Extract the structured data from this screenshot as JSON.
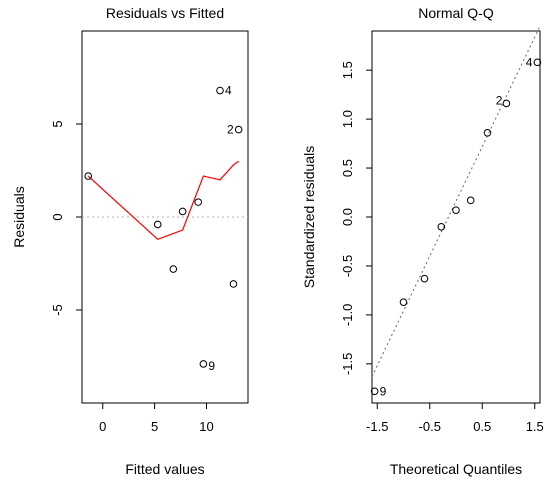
{
  "chart_data": [
    {
      "type": "scatter",
      "title": "Residuals vs Fitted",
      "xlabel": "Fitted values",
      "ylabel": "Residuals",
      "xlim": [
        -2,
        14
      ],
      "ylim": [
        -10,
        10
      ],
      "x_ticks": [
        "0",
        "5",
        "10"
      ],
      "y_ticks": [
        "-5",
        "0",
        "5"
      ],
      "grid": false,
      "legend": "none",
      "colors": {
        "points": "#000000",
        "smooth_line": "#ff0000",
        "reference_line": "#b3b3b3"
      },
      "points": [
        {
          "x": -1.4,
          "y": 2.2,
          "label": ""
        },
        {
          "x": 5.3,
          "y": -0.4,
          "label": ""
        },
        {
          "x": 6.8,
          "y": -2.8,
          "label": ""
        },
        {
          "x": 7.7,
          "y": 0.3,
          "label": ""
        },
        {
          "x": 9.2,
          "y": 0.8,
          "label": ""
        },
        {
          "x": 9.7,
          "y": -7.9,
          "label": "9"
        },
        {
          "x": 11.3,
          "y": 6.8,
          "label": "4"
        },
        {
          "x": 12.6,
          "y": -3.6,
          "label": ""
        },
        {
          "x": 13.1,
          "y": 4.7,
          "label": "2"
        }
      ],
      "smooth_line": [
        {
          "x": -1.4,
          "y": 2.2
        },
        {
          "x": 5.3,
          "y": -1.2
        },
        {
          "x": 7.7,
          "y": -0.7
        },
        {
          "x": 9.7,
          "y": 2.2
        },
        {
          "x": 11.3,
          "y": 2.0
        },
        {
          "x": 12.6,
          "y": 2.8
        },
        {
          "x": 13.1,
          "y": 3.0
        }
      ],
      "reference_y": 0
    },
    {
      "type": "scatter",
      "title": "Normal Q-Q",
      "xlabel": "Theoretical Quantiles",
      "ylabel": "Standardized residuals",
      "xlim": [
        -1.6,
        1.6
      ],
      "ylim": [
        -1.9,
        1.9
      ],
      "x_ticks": [
        "-1.5",
        "-0.5",
        "0.5",
        "1.5"
      ],
      "y_ticks": [
        "-1.5",
        "-1.0",
        "-0.5",
        "0.0",
        "0.5",
        "1.0",
        "1.5"
      ],
      "grid": false,
      "legend": "none",
      "colors": {
        "points": "#000000",
        "reference_line": "#666666"
      },
      "points": [
        {
          "x": -1.55,
          "y": -1.78,
          "label": "9"
        },
        {
          "x": -1.0,
          "y": -0.87,
          "label": ""
        },
        {
          "x": -0.6,
          "y": -0.63,
          "label": ""
        },
        {
          "x": -0.28,
          "y": -0.1,
          "label": ""
        },
        {
          "x": 0.0,
          "y": 0.07,
          "label": ""
        },
        {
          "x": 0.28,
          "y": 0.17,
          "label": ""
        },
        {
          "x": 0.6,
          "y": 0.86,
          "label": ""
        },
        {
          "x": 0.96,
          "y": 1.16,
          "label": "2"
        },
        {
          "x": 1.55,
          "y": 1.58,
          "label": "4"
        }
      ],
      "reference_line": [
        {
          "x": -1.6,
          "y": -1.63
        },
        {
          "x": 1.6,
          "y": 1.95
        }
      ]
    }
  ]
}
